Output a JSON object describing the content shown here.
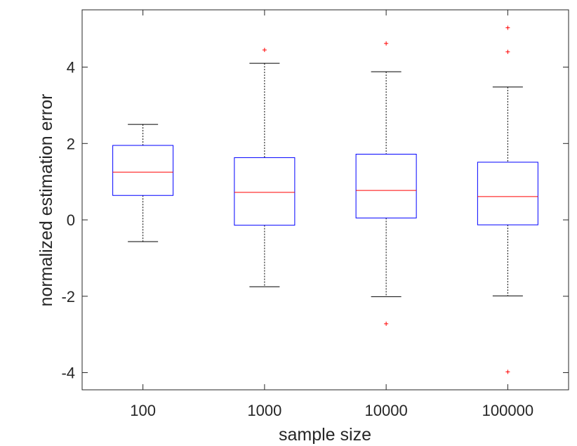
{
  "chart_data": {
    "type": "box",
    "title": "",
    "xlabel": "sample size",
    "ylabel": "normalized estimation error",
    "categories": [
      "100",
      "1000",
      "10000",
      "100000"
    ],
    "ylim": [
      -4.45,
      5.5
    ],
    "yticks": [
      -4,
      -2,
      0,
      2,
      4
    ],
    "ytick_labels": [
      "-4",
      "-2",
      "0",
      "2",
      "4"
    ],
    "grid": false,
    "boxes": [
      {
        "category": "100",
        "whisker_low": -0.57,
        "q1": 0.64,
        "median": 1.25,
        "q3": 1.95,
        "whisker_high": 2.5,
        "outliers": []
      },
      {
        "category": "1000",
        "whisker_low": -1.75,
        "q1": -0.14,
        "median": 0.72,
        "q3": 1.63,
        "whisker_high": 4.1,
        "outliers": [
          4.45
        ]
      },
      {
        "category": "10000",
        "whisker_low": -2.01,
        "q1": 0.05,
        "median": 0.77,
        "q3": 1.72,
        "whisker_high": 3.88,
        "outliers": [
          4.62,
          -2.72
        ]
      },
      {
        "category": "100000",
        "whisker_low": -1.99,
        "q1": -0.13,
        "median": 0.61,
        "q3": 1.51,
        "whisker_high": 3.48,
        "outliers": [
          5.03,
          4.4,
          -3.98
        ]
      }
    ],
    "colors": {
      "box": "#0000ff",
      "median": "#ff0000",
      "whisker": "#000000",
      "outlier": "#ff0000",
      "axis": "#262626"
    }
  }
}
